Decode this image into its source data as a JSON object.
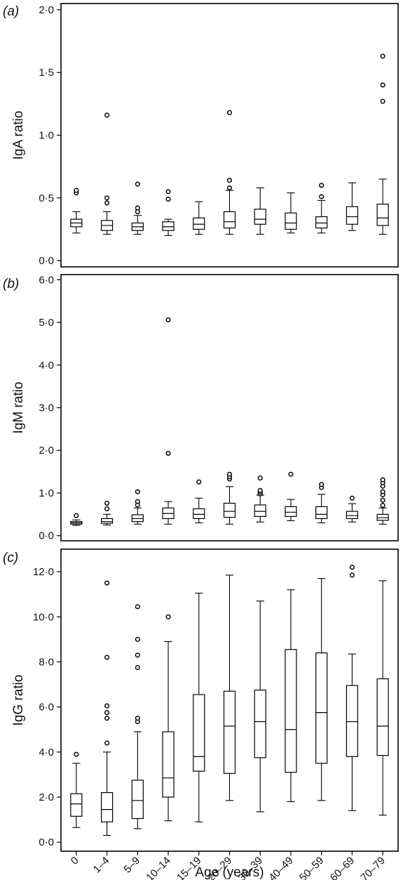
{
  "chart_data": [
    {
      "type": "boxplot",
      "panel_label": "(a)",
      "ylabel": "IgA ratio",
      "ylim": [
        -0.05,
        2.05
      ],
      "yticks": [
        0,
        0.5,
        1.0,
        1.5,
        2.0
      ],
      "ytick_labels": [
        "0·0",
        "0·5",
        "1·0",
        "1·5",
        "2·0"
      ],
      "categories": [
        "0",
        "1–4",
        "5–9",
        "10–14",
        "15–19",
        "20–29",
        "30–39",
        "40–49",
        "50–59",
        "60–69",
        "70–79"
      ],
      "boxes": [
        {
          "min": 0.22,
          "q1": 0.27,
          "median": 0.3,
          "q3": 0.33,
          "max": 0.39,
          "outliers": [
            0.54,
            0.56
          ]
        },
        {
          "min": 0.21,
          "q1": 0.24,
          "median": 0.28,
          "q3": 0.32,
          "max": 0.39,
          "outliers": [
            0.46,
            0.5,
            1.16
          ]
        },
        {
          "min": 0.21,
          "q1": 0.24,
          "median": 0.27,
          "q3": 0.3,
          "max": 0.36,
          "outliers": [
            0.39,
            0.42,
            0.61
          ]
        },
        {
          "min": 0.2,
          "q1": 0.24,
          "median": 0.27,
          "q3": 0.31,
          "max": 0.33,
          "outliers": [
            0.49,
            0.55
          ]
        },
        {
          "min": 0.21,
          "q1": 0.25,
          "median": 0.29,
          "q3": 0.34,
          "max": 0.47,
          "outliers": []
        },
        {
          "min": 0.21,
          "q1": 0.26,
          "median": 0.31,
          "q3": 0.39,
          "max": 0.56,
          "outliers": [
            0.58,
            0.64,
            1.18
          ]
        },
        {
          "min": 0.21,
          "q1": 0.29,
          "median": 0.33,
          "q3": 0.41,
          "max": 0.58,
          "outliers": []
        },
        {
          "min": 0.22,
          "q1": 0.25,
          "median": 0.3,
          "q3": 0.38,
          "max": 0.54,
          "outliers": []
        },
        {
          "min": 0.22,
          "q1": 0.26,
          "median": 0.3,
          "q3": 0.35,
          "max": 0.48,
          "outliers": [
            0.51,
            0.6
          ]
        },
        {
          "min": 0.24,
          "q1": 0.29,
          "median": 0.35,
          "q3": 0.43,
          "max": 0.62,
          "outliers": []
        },
        {
          "min": 0.21,
          "q1": 0.28,
          "median": 0.34,
          "q3": 0.45,
          "max": 0.65,
          "outliers": [
            1.27,
            1.4,
            1.63
          ]
        }
      ]
    },
    {
      "type": "boxplot",
      "panel_label": "(b)",
      "ylabel": "IgM ratio",
      "ylim": [
        -0.12,
        6.12
      ],
      "yticks": [
        0,
        1,
        2,
        3,
        4,
        5,
        6
      ],
      "ytick_labels": [
        "0·0",
        "1·0",
        "2·0",
        "3·0",
        "4·0",
        "5·0",
        "6·0"
      ],
      "categories": [
        "0",
        "1–4",
        "5–9",
        "10–14",
        "15–19",
        "20–29",
        "30–39",
        "40–49",
        "50–59",
        "60–69",
        "70–79"
      ],
      "boxes": [
        {
          "min": 0.24,
          "q1": 0.27,
          "median": 0.3,
          "q3": 0.33,
          "max": 0.37,
          "outliers": [
            0.47
          ]
        },
        {
          "min": 0.25,
          "q1": 0.29,
          "median": 0.33,
          "q3": 0.4,
          "max": 0.5,
          "outliers": [
            0.63,
            0.76
          ]
        },
        {
          "min": 0.27,
          "q1": 0.33,
          "median": 0.4,
          "q3": 0.49,
          "max": 0.65,
          "outliers": [
            0.72,
            0.8,
            1.03
          ]
        },
        {
          "min": 0.27,
          "q1": 0.4,
          "median": 0.52,
          "q3": 0.65,
          "max": 0.8,
          "outliers": [
            1.93,
            5.06
          ]
        },
        {
          "min": 0.3,
          "q1": 0.4,
          "median": 0.5,
          "q3": 0.63,
          "max": 0.88,
          "outliers": [
            1.26
          ]
        },
        {
          "min": 0.27,
          "q1": 0.43,
          "median": 0.57,
          "q3": 0.76,
          "max": 1.15,
          "outliers": [
            1.33,
            1.38,
            1.44
          ]
        },
        {
          "min": 0.32,
          "q1": 0.45,
          "median": 0.57,
          "q3": 0.72,
          "max": 0.95,
          "outliers": [
            0.98,
            1.02,
            1.06,
            1.35
          ]
        },
        {
          "min": 0.35,
          "q1": 0.45,
          "median": 0.55,
          "q3": 0.68,
          "max": 0.85,
          "outliers": [
            1.44
          ]
        },
        {
          "min": 0.3,
          "q1": 0.4,
          "median": 0.5,
          "q3": 0.68,
          "max": 0.97,
          "outliers": [
            1.13,
            1.2
          ]
        },
        {
          "min": 0.32,
          "q1": 0.4,
          "median": 0.47,
          "q3": 0.57,
          "max": 0.75,
          "outliers": [
            0.88
          ]
        },
        {
          "min": 0.27,
          "q1": 0.36,
          "median": 0.42,
          "q3": 0.5,
          "max": 0.65,
          "outliers": [
            0.71,
            0.83,
            0.96,
            1.03,
            1.16,
            1.24,
            1.31
          ]
        }
      ]
    },
    {
      "type": "boxplot",
      "panel_label": "(c)",
      "ylabel": "IgG ratio",
      "xlabel": "Age (years)",
      "ylim": [
        -0.4,
        13.0
      ],
      "yticks": [
        0,
        2,
        4,
        6,
        8,
        10,
        12
      ],
      "ytick_labels": [
        "0·0",
        "2·0",
        "4·0",
        "6·0",
        "8·0",
        "10·0",
        "12·0"
      ],
      "categories": [
        "0",
        "1–4",
        "5–9",
        "10–14",
        "15–19",
        "20–29",
        "30–39",
        "40–49",
        "50–59",
        "60–69",
        "70–79"
      ],
      "boxes": [
        {
          "min": 0.65,
          "q1": 1.15,
          "median": 1.7,
          "q3": 2.15,
          "max": 3.5,
          "outliers": [
            3.9
          ]
        },
        {
          "min": 0.3,
          "q1": 0.9,
          "median": 1.45,
          "q3": 2.2,
          "max": 4.0,
          "outliers": [
            4.4,
            5.5,
            5.75,
            6.05,
            8.2,
            11.5
          ]
        },
        {
          "min": 0.6,
          "q1": 1.05,
          "median": 1.85,
          "q3": 2.75,
          "max": 4.9,
          "outliers": [
            5.35,
            5.5,
            7.75,
            8.3,
            9.0,
            10.45
          ]
        },
        {
          "min": 0.95,
          "q1": 2.0,
          "median": 2.85,
          "q3": 4.9,
          "max": 8.9,
          "outliers": [
            10.0
          ]
        },
        {
          "min": 0.9,
          "q1": 3.15,
          "median": 3.8,
          "q3": 6.55,
          "max": 11.05,
          "outliers": []
        },
        {
          "min": 1.85,
          "q1": 3.05,
          "median": 5.15,
          "q3": 6.7,
          "max": 11.85,
          "outliers": []
        },
        {
          "min": 1.35,
          "q1": 3.75,
          "median": 5.35,
          "q3": 6.75,
          "max": 10.7,
          "outliers": []
        },
        {
          "min": 1.8,
          "q1": 3.1,
          "median": 5.0,
          "q3": 8.55,
          "max": 11.2,
          "outliers": []
        },
        {
          "min": 1.85,
          "q1": 3.5,
          "median": 5.75,
          "q3": 8.4,
          "max": 11.7,
          "outliers": []
        },
        {
          "min": 1.4,
          "q1": 3.8,
          "median": 5.35,
          "q3": 6.95,
          "max": 8.35,
          "outliers": [
            11.85,
            12.2
          ]
        },
        {
          "min": 1.2,
          "q1": 3.85,
          "median": 5.15,
          "q3": 7.25,
          "max": 11.6,
          "outliers": []
        }
      ]
    }
  ]
}
